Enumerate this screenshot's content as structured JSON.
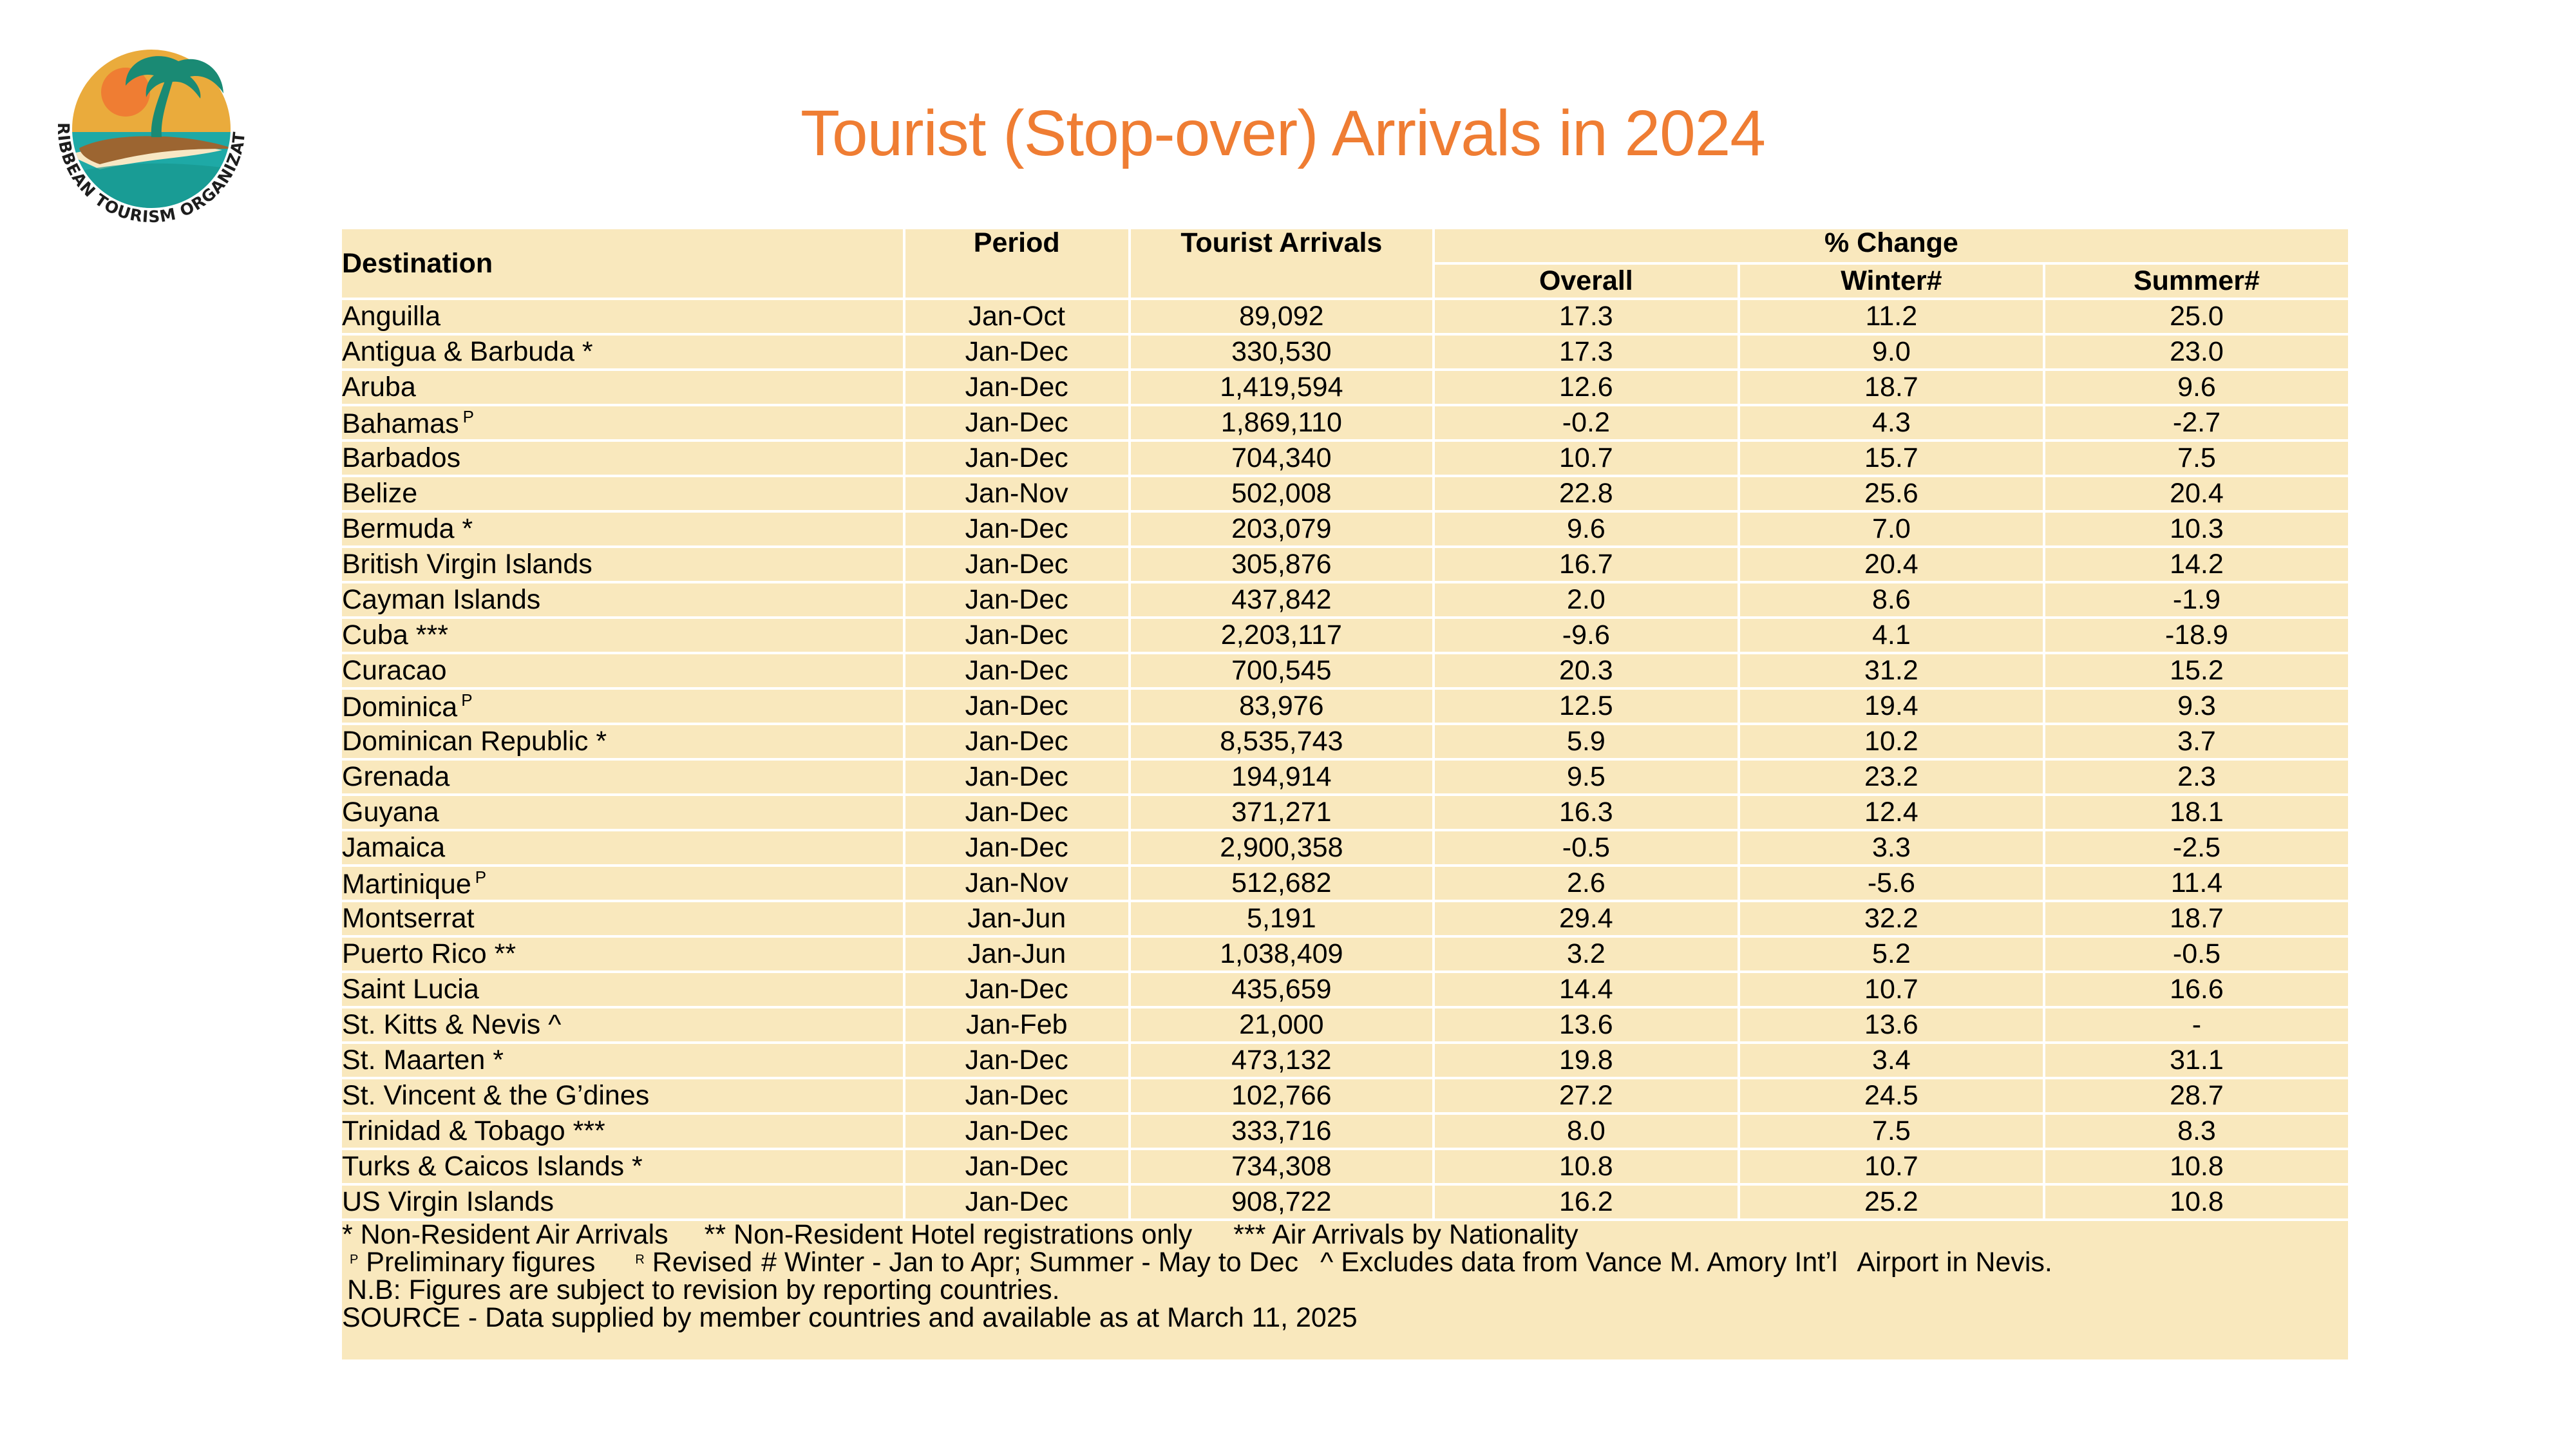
{
  "logo": {
    "org_name": "CARIBBEAN TOURISM ORGANIZATION",
    "colors": {
      "sky": "#eaab3c",
      "sun": "#ef7d33",
      "palm": "#1a8a74",
      "sand": "#9c6531",
      "beach": "#f7e7c4",
      "sea": "#1ea9a6"
    }
  },
  "title": "Tourist (Stop-over) Arrivals in 2024",
  "colors": {
    "title": "#ef7d33",
    "table_bg": "#f9e8bd",
    "grid": "#ffffff"
  },
  "table": {
    "headers": {
      "destination": "Destination",
      "period": "Period",
      "arrivals": "Tourist Arrivals",
      "pct_change": "% Change",
      "overall": "Overall",
      "winter": "Winter#",
      "summer": "Summer#"
    },
    "rows": [
      {
        "destination": "Anguilla",
        "mark": "",
        "period": "Jan-Oct",
        "arrivals": "89,092",
        "overall": "17.3",
        "winter": "11.2",
        "summer": "25.0"
      },
      {
        "destination": "Antigua & Barbuda *",
        "mark": "",
        "period": "Jan-Dec",
        "arrivals": "330,530",
        "overall": "17.3",
        "winter": "9.0",
        "summer": "23.0"
      },
      {
        "destination": "Aruba",
        "mark": "",
        "period": "Jan-Dec",
        "arrivals": "1,419,594",
        "overall": "12.6",
        "winter": "18.7",
        "summer": "9.6"
      },
      {
        "destination": "Bahamas",
        "mark": "P",
        "period": "Jan-Dec",
        "arrivals": "1,869,110",
        "overall": "-0.2",
        "winter": "4.3",
        "summer": "-2.7"
      },
      {
        "destination": "Barbados",
        "mark": "",
        "period": "Jan-Dec",
        "arrivals": "704,340",
        "overall": "10.7",
        "winter": "15.7",
        "summer": "7.5"
      },
      {
        "destination": "Belize",
        "mark": "",
        "period": "Jan-Nov",
        "arrivals": "502,008",
        "overall": "22.8",
        "winter": "25.6",
        "summer": "20.4"
      },
      {
        "destination": "Bermuda *",
        "mark": "",
        "period": "Jan-Dec",
        "arrivals": "203,079",
        "overall": "9.6",
        "winter": "7.0",
        "summer": "10.3"
      },
      {
        "destination": "British Virgin Islands",
        "mark": "",
        "period": "Jan-Dec",
        "arrivals": "305,876",
        "overall": "16.7",
        "winter": "20.4",
        "summer": "14.2"
      },
      {
        "destination": "Cayman Islands",
        "mark": "",
        "period": "Jan-Dec",
        "arrivals": "437,842",
        "overall": "2.0",
        "winter": "8.6",
        "summer": "-1.9"
      },
      {
        "destination": "Cuba ***",
        "mark": "",
        "period": "Jan-Dec",
        "arrivals": "2,203,117",
        "overall": "-9.6",
        "winter": "4.1",
        "summer": "-18.9"
      },
      {
        "destination": "Curacao",
        "mark": "",
        "period": "Jan-Dec",
        "arrivals": "700,545",
        "overall": "20.3",
        "winter": "31.2",
        "summer": "15.2"
      },
      {
        "destination": "Dominica",
        "mark": "P",
        "period": "Jan-Dec",
        "arrivals": "83,976",
        "overall": "12.5",
        "winter": "19.4",
        "summer": "9.3"
      },
      {
        "destination": "Dominican Republic *",
        "mark": "",
        "period": "Jan-Dec",
        "arrivals": "8,535,743",
        "overall": "5.9",
        "winter": "10.2",
        "summer": "3.7"
      },
      {
        "destination": "Grenada",
        "mark": "",
        "period": "Jan-Dec",
        "arrivals": "194,914",
        "overall": "9.5",
        "winter": "23.2",
        "summer": "2.3"
      },
      {
        "destination": "Guyana",
        "mark": "",
        "period": "Jan-Dec",
        "arrivals": "371,271",
        "overall": "16.3",
        "winter": "12.4",
        "summer": "18.1"
      },
      {
        "destination": "Jamaica",
        "mark": "",
        "period": "Jan-Dec",
        "arrivals": "2,900,358",
        "overall": "-0.5",
        "winter": "3.3",
        "summer": "-2.5"
      },
      {
        "destination": "Martinique",
        "mark": "P",
        "period": "Jan-Nov",
        "arrivals": "512,682",
        "overall": "2.6",
        "winter": "-5.6",
        "summer": "11.4"
      },
      {
        "destination": "Montserrat",
        "mark": "",
        "period": "Jan-Jun",
        "arrivals": "5,191",
        "overall": "29.4",
        "winter": "32.2",
        "summer": "18.7"
      },
      {
        "destination": "Puerto Rico **",
        "mark": "",
        "period": "Jan-Jun",
        "arrivals": "1,038,409",
        "overall": "3.2",
        "winter": "5.2",
        "summer": "-0.5"
      },
      {
        "destination": "Saint Lucia",
        "mark": "",
        "period": "Jan-Dec",
        "arrivals": "435,659",
        "overall": "14.4",
        "winter": "10.7",
        "summer": "16.6"
      },
      {
        "destination": "St. Kitts & Nevis ^",
        "mark": "",
        "period": "Jan-Feb",
        "arrivals": "21,000",
        "overall": "13.6",
        "winter": "13.6",
        "summer": "-"
      },
      {
        "destination": "St. Maarten *",
        "mark": "",
        "period": "Jan-Dec",
        "arrivals": "473,132",
        "overall": "19.8",
        "winter": "3.4",
        "summer": "31.1"
      },
      {
        "destination": "St. Vincent & the G’dines",
        "mark": "",
        "period": "Jan-Dec",
        "arrivals": "102,766",
        "overall": "27.2",
        "winter": "24.5",
        "summer": "28.7"
      },
      {
        "destination": "Trinidad & Tobago ***",
        "mark": "",
        "period": "Jan-Dec",
        "arrivals": "333,716",
        "overall": "8.0",
        "winter": "7.5",
        "summer": "8.3"
      },
      {
        "destination": "Turks & Caicos Islands *",
        "mark": "",
        "period": "Jan-Dec",
        "arrivals": "734,308",
        "overall": "10.8",
        "winter": "10.7",
        "summer": "10.8"
      },
      {
        "destination": "US Virgin Islands",
        "mark": "",
        "period": "Jan-Dec",
        "arrivals": "908,722",
        "overall": "16.2",
        "winter": "25.2",
        "summer": "10.8"
      }
    ]
  },
  "footnotes": {
    "line1": {
      "a": "* Non-Resident Air Arrivals",
      "b": "** Non-Resident Hotel registrations only",
      "c": "*** Air Arrivals by Nationality"
    },
    "line2": {
      "p_mark": "P",
      "p_text": "Preliminary figures",
      "r_mark": "R",
      "r_text": "Revised",
      "seasons": "# Winter - Jan to Apr; Summer - May to Dec",
      "caret": "^ Excludes data from Vance M. Amory Int’l",
      "caret_tail": "Airport in Nevis."
    },
    "nb": "N.B: Figures are subject to revision by reporting countries.",
    "source": "SOURCE - Data supplied by member countries and available as at March 11, 2025"
  }
}
